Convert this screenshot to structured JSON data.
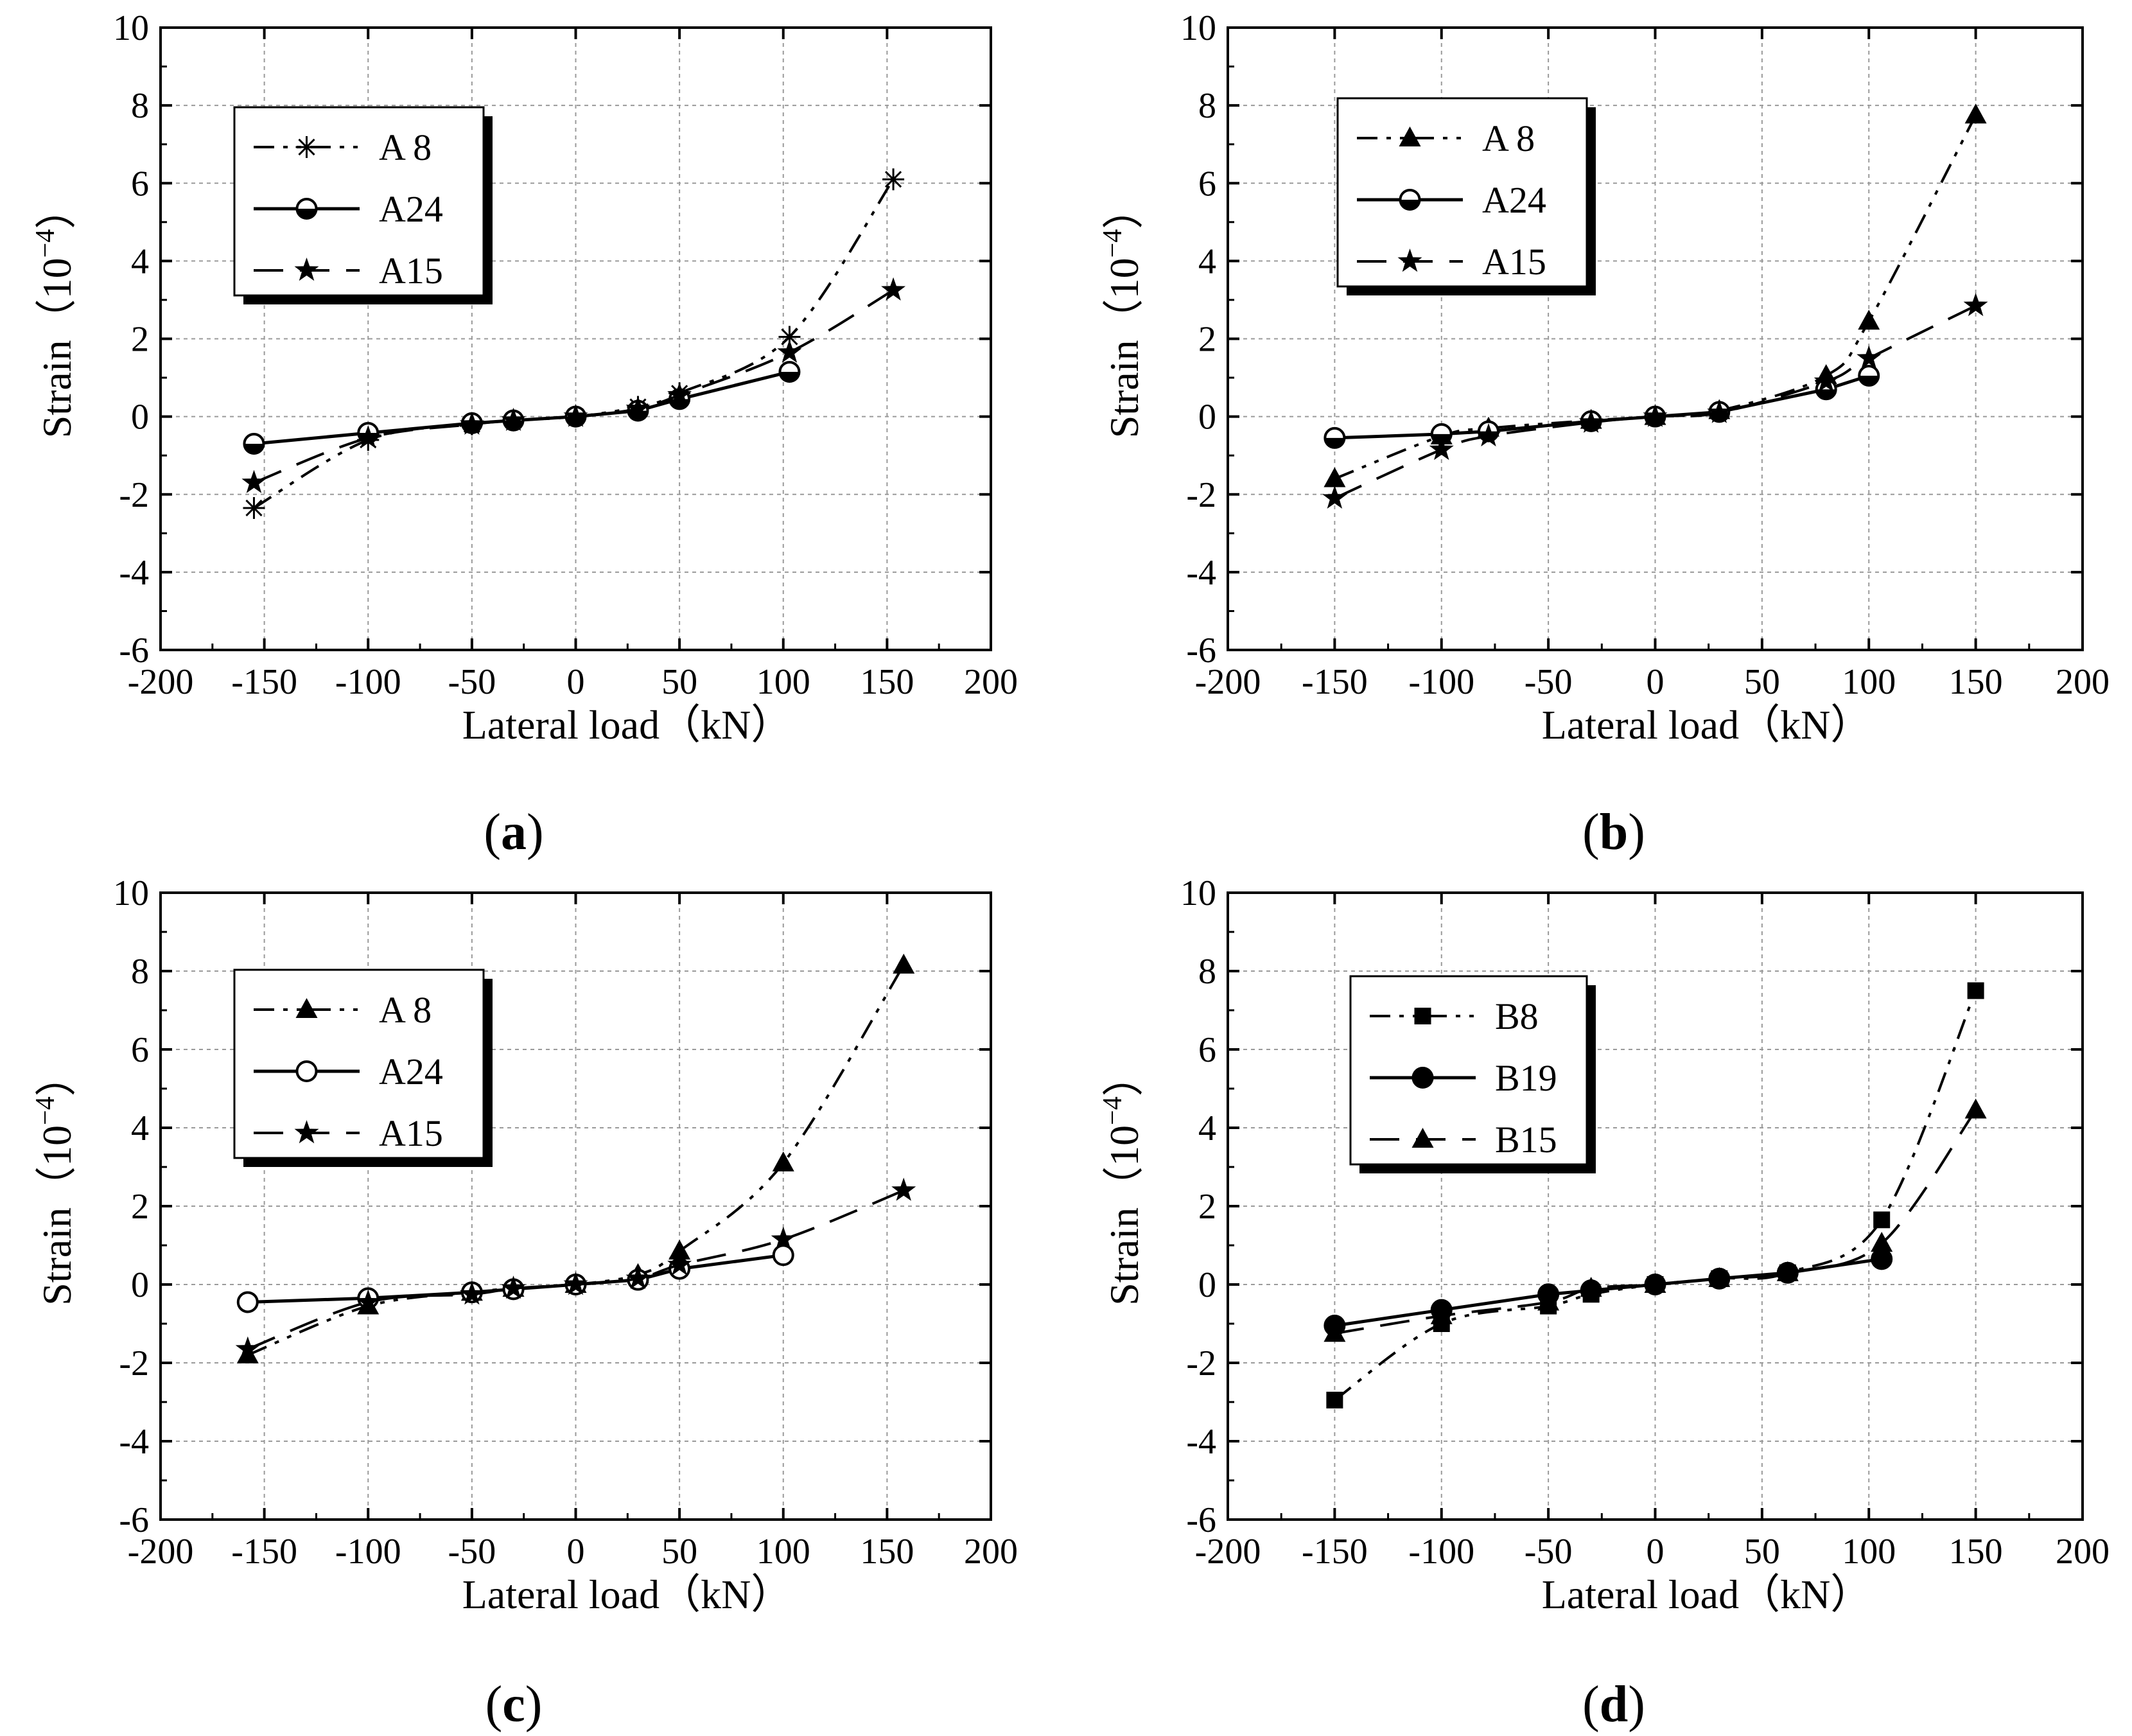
{
  "figure": {
    "colors": {
      "ink": "#000000",
      "grid": "#9a9a9a",
      "background": "#ffffff"
    },
    "labels": {
      "open": "(",
      "close": ")"
    }
  },
  "chart_data": [
    {
      "id": "a",
      "type": "line",
      "panel_label": "a",
      "xlabel": "Lateral load（kN）",
      "ylabel": "Strain（10",
      "ylabel_exp": "−4",
      "ylabel_close": "）",
      "xlim": [
        -200,
        200
      ],
      "ylim": [
        -6,
        10
      ],
      "xticks": [
        -200,
        -150,
        -100,
        -50,
        0,
        50,
        100,
        150,
        200
      ],
      "yticks": [
        -6,
        -4,
        -2,
        0,
        2,
        4,
        6,
        8,
        10
      ],
      "xtick_labels": [
        "-200",
        "-150",
        "-100",
        "-50",
        "0",
        "50",
        "100",
        "150",
        "200"
      ],
      "ytick_labels": [
        "-6",
        "-4",
        "-2",
        "0",
        "2",
        "4",
        "6",
        "8",
        "10"
      ],
      "grid": true,
      "legend_position": "top-left",
      "series": [
        {
          "name": "A 8",
          "line": "dashdotdot",
          "marker": "asterisk",
          "x": [
            -155,
            -100,
            -50,
            -30,
            0,
            30,
            50,
            103,
            153
          ],
          "y": [
            -2.35,
            -0.6,
            -0.2,
            -0.1,
            0.0,
            0.25,
            0.6,
            2.05,
            6.1
          ]
        },
        {
          "name": "A24",
          "line": "solid",
          "marker": "circle-half",
          "x": [
            -155,
            -100,
            -50,
            -30,
            0,
            30,
            50,
            103
          ],
          "y": [
            -0.7,
            -0.42,
            -0.17,
            -0.1,
            0.0,
            0.15,
            0.45,
            1.15
          ]
        },
        {
          "name": "A15",
          "line": "dash",
          "marker": "star",
          "x": [
            -155,
            -100,
            -50,
            -30,
            0,
            30,
            50,
            103,
            153
          ],
          "y": [
            -1.7,
            -0.55,
            -0.2,
            -0.1,
            0.0,
            0.2,
            0.55,
            1.65,
            3.25
          ]
        }
      ]
    },
    {
      "id": "b",
      "type": "line",
      "panel_label": "b",
      "xlabel": "Lateral load（kN）",
      "ylabel": "Strain（10",
      "ylabel_exp": "−4",
      "ylabel_close": "）",
      "xlim": [
        -200,
        200
      ],
      "ylim": [
        -6,
        10
      ],
      "xticks": [
        -200,
        -150,
        -100,
        -50,
        0,
        50,
        100,
        150,
        200
      ],
      "yticks": [
        -6,
        -4,
        -2,
        0,
        2,
        4,
        6,
        8,
        10
      ],
      "xtick_labels": [
        "-200",
        "-150",
        "-100",
        "-50",
        "0",
        "50",
        "100",
        "150",
        "200"
      ],
      "ytick_labels": [
        "-6",
        "-4",
        "-2",
        "0",
        "2",
        "4",
        "6",
        "8",
        "10"
      ],
      "grid": true,
      "legend_position": "top-left",
      "series": [
        {
          "name": "A 8",
          "line": "dashdotdot",
          "marker": "triangle",
          "x": [
            -150,
            -100,
            -78,
            -30,
            0,
            30,
            80,
            100,
            150
          ],
          "y": [
            -1.6,
            -0.5,
            -0.3,
            -0.1,
            0.0,
            0.15,
            1.05,
            2.45,
            7.75
          ]
        },
        {
          "name": "A24",
          "line": "solid",
          "marker": "circle-half",
          "x": [
            -150,
            -100,
            -78,
            -30,
            0,
            30,
            80,
            100
          ],
          "y": [
            -0.55,
            -0.45,
            -0.38,
            -0.12,
            0.0,
            0.12,
            0.7,
            1.05
          ]
        },
        {
          "name": "A15",
          "line": "dash",
          "marker": "star",
          "x": [
            -150,
            -100,
            -78,
            -30,
            0,
            30,
            80,
            100,
            150
          ],
          "y": [
            -2.1,
            -0.85,
            -0.5,
            -0.15,
            0.0,
            0.1,
            0.9,
            1.5,
            2.85
          ]
        }
      ]
    },
    {
      "id": "c",
      "type": "line",
      "panel_label": "c",
      "xlabel": "Lateral load（kN）",
      "ylabel": "Strain（10",
      "ylabel_exp": "−4",
      "ylabel_close": "）",
      "xlim": [
        -200,
        200
      ],
      "ylim": [
        -6,
        10
      ],
      "xticks": [
        -200,
        -150,
        -100,
        -50,
        0,
        50,
        100,
        150,
        200
      ],
      "yticks": [
        -6,
        -4,
        -2,
        0,
        2,
        4,
        6,
        8,
        10
      ],
      "xtick_labels": [
        "-200",
        "-150",
        "-100",
        "-50",
        "0",
        "50",
        "100",
        "150",
        "200"
      ],
      "ytick_labels": [
        "-6",
        "-4",
        "-2",
        "0",
        "2",
        "4",
        "6",
        "8",
        "10"
      ],
      "grid": true,
      "legend_position": "top-left",
      "series": [
        {
          "name": "A 8",
          "line": "dashdotdot",
          "marker": "triangle",
          "x": [
            -158,
            -100,
            -50,
            -30,
            0,
            30,
            50,
            100,
            158
          ],
          "y": [
            -1.8,
            -0.55,
            -0.2,
            -0.1,
            0.0,
            0.25,
            0.85,
            3.1,
            8.15
          ]
        },
        {
          "name": "A24",
          "line": "solid",
          "marker": "circle-open",
          "x": [
            -158,
            -100,
            -50,
            -30,
            0,
            30,
            50,
            100
          ],
          "y": [
            -0.45,
            -0.35,
            -0.2,
            -0.12,
            0.0,
            0.12,
            0.4,
            0.75
          ]
        },
        {
          "name": "A15",
          "line": "dash",
          "marker": "star",
          "x": [
            -158,
            -100,
            -50,
            -30,
            0,
            30,
            50,
            100,
            158
          ],
          "y": [
            -1.65,
            -0.45,
            -0.25,
            -0.1,
            0.0,
            0.15,
            0.5,
            1.15,
            2.4
          ]
        }
      ]
    },
    {
      "id": "d",
      "type": "line",
      "panel_label": "d",
      "xlabel": "Lateral load（kN）",
      "ylabel": "Strain（10",
      "ylabel_exp": "−4",
      "ylabel_close": "）",
      "xlim": [
        -200,
        200
      ],
      "ylim": [
        -6,
        10
      ],
      "xticks": [
        -200,
        -150,
        -100,
        -50,
        0,
        50,
        100,
        150,
        200
      ],
      "yticks": [
        -6,
        -4,
        -2,
        0,
        2,
        4,
        6,
        8,
        10
      ],
      "xtick_labels": [
        "-200",
        "-150",
        "-100",
        "-50",
        "0",
        "50",
        "100",
        "150",
        "200"
      ],
      "ytick_labels": [
        "-6",
        "-4",
        "-2",
        "0",
        "2",
        "4",
        "6",
        "8",
        "10"
      ],
      "grid": true,
      "legend_position": "top-left",
      "series": [
        {
          "name": "B8",
          "line": "dashdotdot",
          "marker": "square",
          "x": [
            -150,
            -100,
            -50,
            -30,
            0,
            30,
            62,
            106,
            150
          ],
          "y": [
            -2.95,
            -1.0,
            -0.55,
            -0.25,
            0.0,
            0.15,
            0.3,
            1.65,
            7.5
          ]
        },
        {
          "name": "B19",
          "line": "solid",
          "marker": "circle",
          "x": [
            -150,
            -100,
            -50,
            -30,
            0,
            30,
            62,
            106
          ],
          "y": [
            -1.05,
            -0.65,
            -0.25,
            -0.15,
            0.0,
            0.15,
            0.3,
            0.65
          ]
        },
        {
          "name": "B15",
          "line": "dash",
          "marker": "triangle",
          "x": [
            -150,
            -100,
            -50,
            -30,
            0,
            30,
            62,
            106,
            150
          ],
          "y": [
            -1.25,
            -0.8,
            -0.45,
            -0.1,
            0.0,
            0.15,
            0.3,
            1.05,
            4.45
          ]
        }
      ]
    }
  ]
}
